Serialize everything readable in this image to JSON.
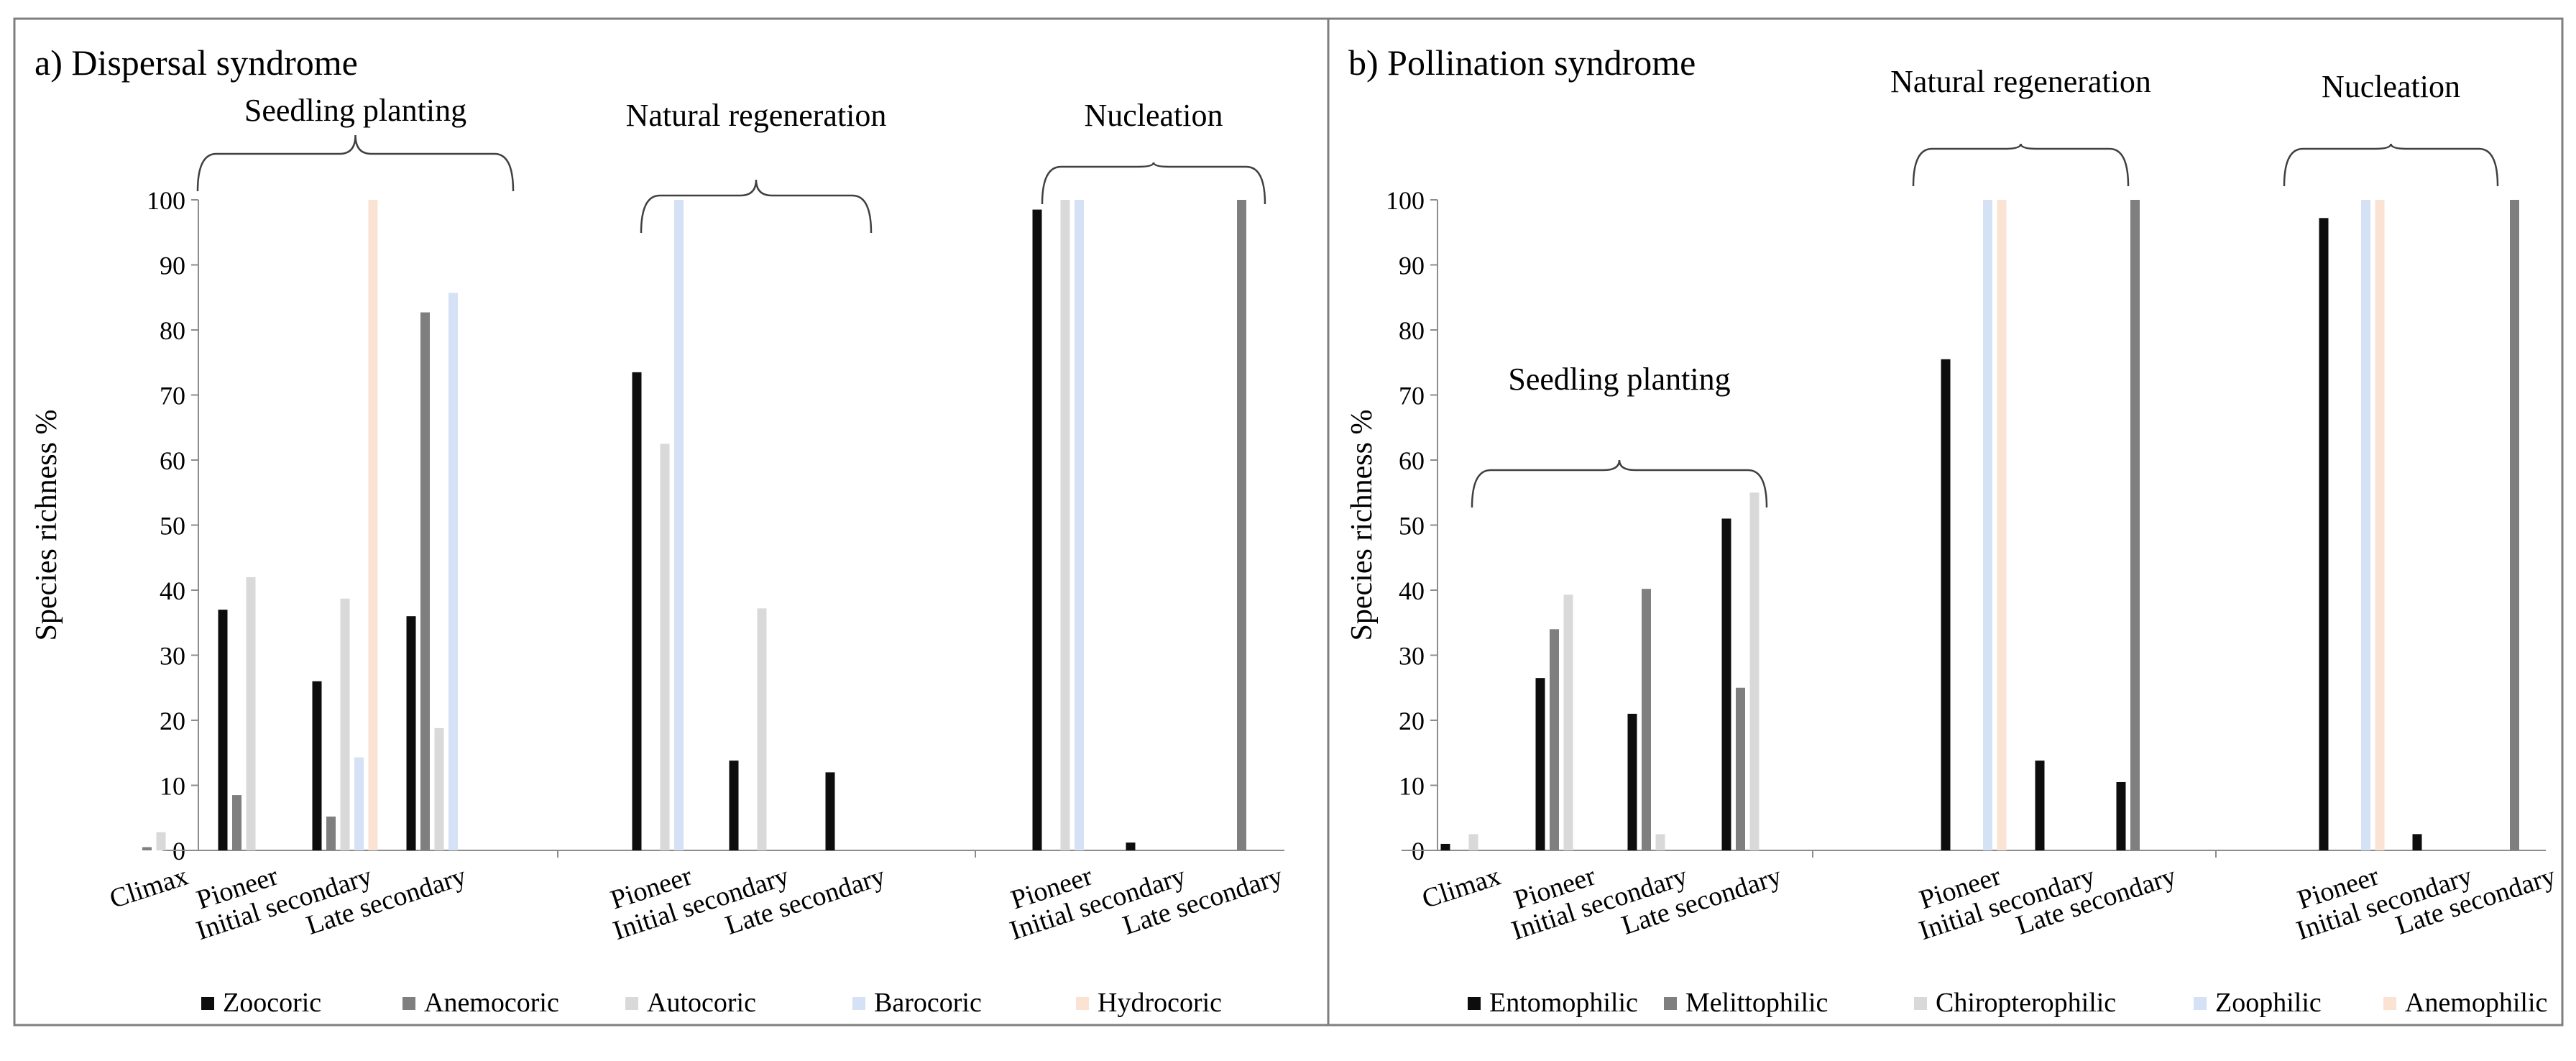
{
  "colors": {
    "Zoocoric": "#0d0d0d",
    "Anemocoric": "#7f7f7f",
    "Autocoric": "#d9d9d9",
    "Barocoric": "#d5e1f5",
    "Hydrocoric": "#fbe3d4",
    "Entomophilic": "#0d0d0d",
    "Melittophilic": "#7f7f7f",
    "Chiropterophilic": "#d9d9d9",
    "Zoophilic": "#d5e1f5",
    "Anemophilic": "#fbe3d4"
  },
  "chart_data": [
    {
      "type": "bar",
      "panel_title": "a) Dispersal syndrome",
      "ylabel": "Species richness %",
      "ylim": [
        0,
        100
      ],
      "yticks": [
        0,
        10,
        20,
        30,
        40,
        50,
        60,
        70,
        80,
        90,
        100
      ],
      "legend": [
        "Zoocoric",
        "Anemocoric",
        "Autocoric",
        "Barocoric",
        "Hydrocoric"
      ],
      "groups": [
        {
          "label": "Seedling planting",
          "categories": [
            {
              "name": "Climax",
              "values": [
                0,
                0.5,
                2.8,
                0,
                0
              ]
            },
            {
              "name": "Pioneer",
              "values": [
                37,
                8.5,
                42,
                0,
                0
              ]
            },
            {
              "name": "Initial secondary",
              "values": [
                26,
                5.2,
                38.7,
                14.3,
                100
              ]
            },
            {
              "name": "Late secondary",
              "values": [
                36,
                82.7,
                18.8,
                85.7,
                0
              ]
            }
          ]
        },
        {
          "label": "Natural regeneration",
          "categories": [
            {
              "name": "Pioneer",
              "values": [
                73.5,
                0,
                62.5,
                100,
                0
              ]
            },
            {
              "name": "Initial secondary",
              "values": [
                13.8,
                0,
                37.2,
                0,
                0
              ]
            },
            {
              "name": "Late secondary",
              "values": [
                12,
                0,
                0,
                0,
                0
              ]
            }
          ]
        },
        {
          "label": "Nucleation",
          "categories": [
            {
              "name": "Pioneer",
              "values": [
                98.5,
                0,
                100,
                100,
                0
              ]
            },
            {
              "name": "Initial secondary",
              "values": [
                1.2,
                0,
                0,
                0,
                0
              ]
            },
            {
              "name": "Late secondary",
              "values": [
                0,
                100,
                0,
                0,
                0
              ]
            }
          ]
        }
      ]
    },
    {
      "type": "bar",
      "panel_title": "b) Pollination syndrome",
      "ylabel": "Species richness %",
      "ylim": [
        0,
        100
      ],
      "yticks": [
        0,
        10,
        20,
        30,
        40,
        50,
        60,
        70,
        80,
        90,
        100
      ],
      "legend": [
        "Entomophilic",
        "Melittophilic",
        "Chiropterophilic",
        "Zoophilic",
        "Anemophilic"
      ],
      "groups": [
        {
          "label": "Seedling planting",
          "categories": [
            {
              "name": "Climax",
              "values": [
                1,
                0,
                2.5,
                0,
                0
              ]
            },
            {
              "name": "Pioneer",
              "values": [
                26.5,
                34,
                39.3,
                0,
                0
              ]
            },
            {
              "name": "Initial secondary",
              "values": [
                21,
                40.2,
                2.5,
                0,
                0
              ]
            },
            {
              "name": "Late secondary",
              "values": [
                51,
                25,
                55,
                0,
                0
              ]
            }
          ]
        },
        {
          "label": "Natural regeneration",
          "categories": [
            {
              "name": "Pioneer",
              "values": [
                75.5,
                0,
                0,
                100,
                100
              ]
            },
            {
              "name": "Initial secondary",
              "values": [
                13.8,
                0,
                0,
                0,
                0
              ]
            },
            {
              "name": "Late secondary",
              "values": [
                10.5,
                100,
                0,
                0,
                0
              ]
            }
          ]
        },
        {
          "label": "Nucleation",
          "categories": [
            {
              "name": "Pioneer",
              "values": [
                97.2,
                0,
                0,
                100,
                100
              ]
            },
            {
              "name": "Initial secondary",
              "values": [
                2.5,
                0,
                0,
                0,
                0
              ]
            },
            {
              "name": "Late secondary",
              "values": [
                0,
                100,
                0,
                0,
                0
              ]
            }
          ]
        }
      ]
    }
  ]
}
